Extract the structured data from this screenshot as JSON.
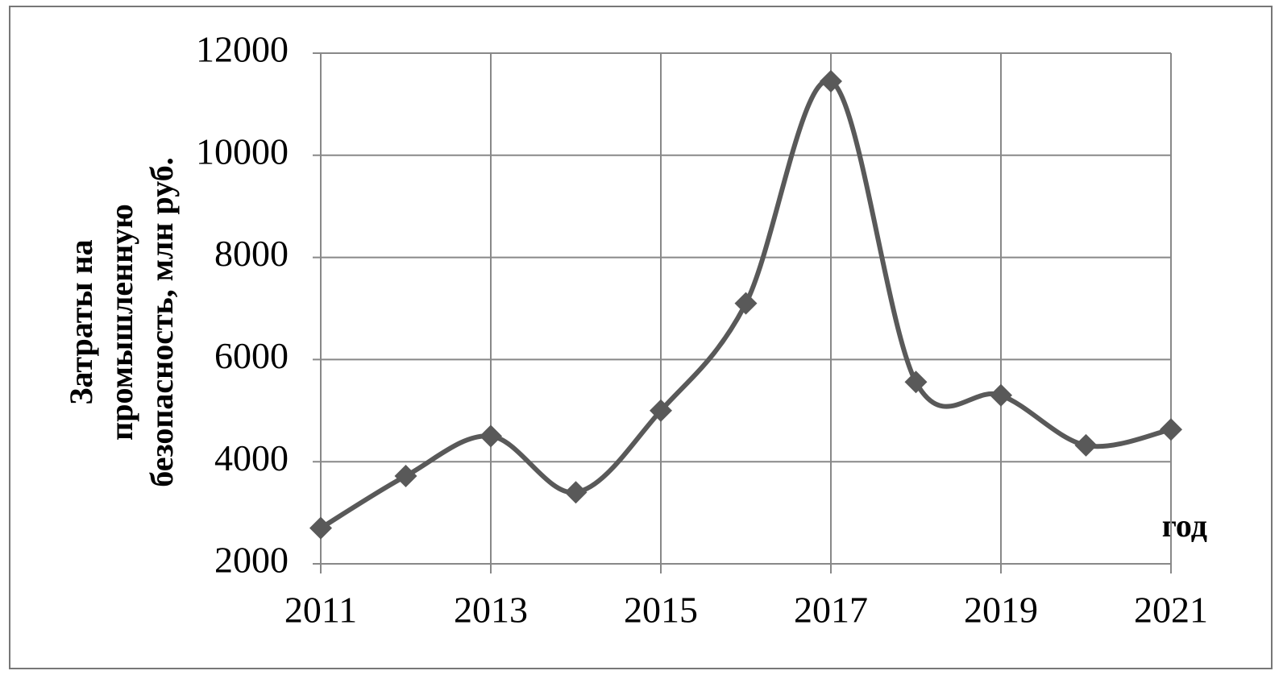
{
  "chart_data": {
    "type": "line",
    "ylabel": [
      "Затраты на",
      "промышленную",
      "безопасность, млн  руб."
    ],
    "xlabel": "год",
    "x": [
      2011,
      2012,
      2013,
      2014,
      2015,
      2016,
      2017,
      2018,
      2019,
      2020,
      2021
    ],
    "values": [
      2700,
      3720,
      4500,
      3400,
      5000,
      7100,
      11450,
      5560,
      5300,
      4320,
      4630
    ],
    "color": "#595959",
    "xlim": [
      2011,
      2021
    ],
    "xticks": [
      2011,
      2013,
      2015,
      2017,
      2019,
      2021
    ],
    "ylim": [
      2000,
      12000
    ],
    "yticks": [
      2000,
      4000,
      6000,
      8000,
      10000,
      12000
    ],
    "grid": true,
    "smooth": true
  }
}
